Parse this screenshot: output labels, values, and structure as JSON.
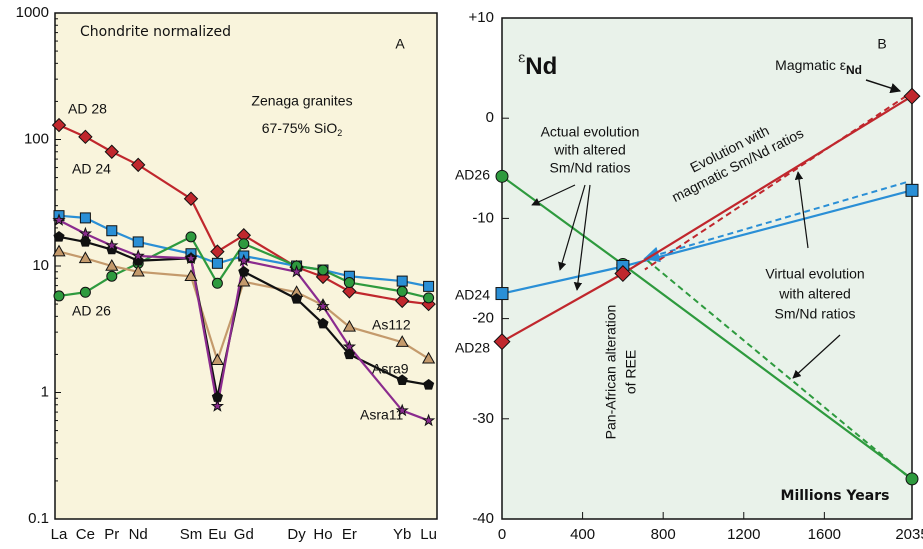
{
  "chart_data": [
    {
      "type": "line",
      "title": "Zenaga granites",
      "subtitle": {
        "text": "67-75% SiO",
        "sub": "2"
      },
      "annotations": [
        "Chondrite normalized",
        "A"
      ],
      "yscale": "log",
      "ylim": [
        0.1,
        1000
      ],
      "yticks": [
        0.1,
        1,
        10,
        100,
        1000
      ],
      "categories": [
        "La",
        "Ce",
        "Pr",
        "Nd",
        null,
        "Sm",
        "Eu",
        "Gd",
        null,
        "Dy",
        "Ho",
        "Er",
        null,
        "Yb",
        "Lu"
      ],
      "series": [
        {
          "name": "AD 28",
          "color": "#c0272d",
          "marker": "diamond",
          "values": [
            130,
            105,
            80,
            63,
            null,
            34,
            13,
            17.5,
            null,
            9.8,
            8.2,
            6.3,
            null,
            5.3,
            5.0
          ]
        },
        {
          "name": "AD 24",
          "color": "#2a8fd6",
          "marker": "square",
          "values": [
            25,
            24,
            19,
            15.5,
            null,
            12.5,
            10.5,
            12,
            null,
            10,
            9.3,
            8.3,
            null,
            7.6,
            6.9
          ]
        },
        {
          "name": "AD 26",
          "color": "#2e9a3e",
          "marker": "circle",
          "values": [
            5.8,
            6.2,
            8.3,
            10.5,
            null,
            17,
            7.3,
            15,
            null,
            10,
            9.3,
            7.4,
            null,
            6.3,
            5.6
          ]
        },
        {
          "name": "As112",
          "color": "#c49a6c",
          "marker": "triangle",
          "values": [
            13,
            11.5,
            10,
            9,
            null,
            8.3,
            1.8,
            7.5,
            null,
            6.2,
            4.9,
            3.3,
            null,
            2.5,
            1.85
          ]
        },
        {
          "name": "Asra9",
          "color": "#111111",
          "marker": "pentagon",
          "values": [
            17,
            15.5,
            13.5,
            11,
            null,
            11.5,
            0.92,
            9,
            null,
            5.5,
            3.5,
            2.0,
            null,
            1.25,
            1.15
          ]
        },
        {
          "name": "Asra11",
          "color": "#8b2b8e",
          "marker": "star",
          "values": [
            23,
            18,
            14.5,
            12,
            null,
            11.5,
            0.78,
            11,
            null,
            9,
            4.8,
            2.3,
            null,
            0.72,
            0.6
          ]
        }
      ]
    },
    {
      "type": "line",
      "title": {
        "text": "ε",
        "sub": "Nd"
      },
      "xlabel": "Millions Years",
      "annotations": [
        [
          "B"
        ],
        [
          "Magmatic ε",
          "Nd"
        ],
        [
          "Actual evolution",
          "with altered",
          "Sm/Nd ratios"
        ],
        [
          "Evolution with",
          "magmatic Sm/Nd ratios"
        ],
        [
          "Virtual evolution",
          "with altered",
          "Sm/Nd ratios"
        ],
        [
          "Pan-African alteration",
          "of REE"
        ]
      ],
      "xlim": [
        0,
        2035
      ],
      "xticks": [
        0,
        400,
        800,
        1200,
        1600,
        2035
      ],
      "ylim": [
        -40,
        10
      ],
      "yticks": [
        {
          "value": 10,
          "label": "+10"
        },
        0,
        -10,
        -20,
        -30,
        -40
      ],
      "series": [
        {
          "name": "AD26",
          "color": "#2e9a3e",
          "marker": "circle",
          "x": [
            0,
            600,
            2035
          ],
          "values": [
            -5.8,
            -14.6,
            -36
          ]
        },
        {
          "name": "AD24",
          "color": "#2a8fd6",
          "marker": "square",
          "x": [
            0,
            600,
            2035
          ],
          "values": [
            -17.5,
            -14.8,
            -7.2
          ]
        },
        {
          "name": "AD28",
          "color": "#c0272d",
          "marker": "diamond",
          "x": [
            0,
            600,
            2035
          ],
          "values": [
            -22.3,
            -15.5,
            2.2
          ]
        }
      ]
    }
  ]
}
